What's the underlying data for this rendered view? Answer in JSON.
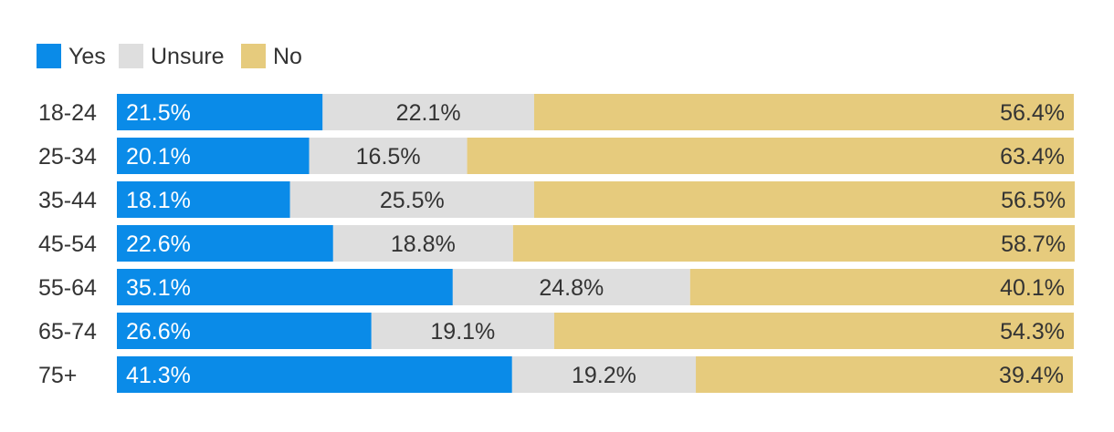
{
  "chart_data": {
    "type": "bar",
    "orientation": "horizontal",
    "stacked": true,
    "normalized": true,
    "title": "",
    "categories": [
      "18-24",
      "25-34",
      "35-44",
      "45-54",
      "55-64",
      "65-74",
      "75+"
    ],
    "series": [
      {
        "name": "Yes",
        "color": "#0a8be8",
        "label_color": "#ffffff",
        "label_align": "start",
        "values": [
          21.5,
          20.1,
          18.1,
          22.6,
          35.1,
          26.6,
          41.3
        ],
        "labels": [
          "21.5%",
          "20.1%",
          "18.1%",
          "22.6%",
          "35.1%",
          "26.6%",
          "41.3%"
        ]
      },
      {
        "name": "Unsure",
        "color": "#dedede",
        "label_color": "#333333",
        "label_align": "middle",
        "values": [
          22.1,
          16.5,
          25.5,
          18.8,
          24.8,
          19.1,
          19.2
        ],
        "labels": [
          "22.1%",
          "16.5%",
          "25.5%",
          "18.8%",
          "24.8%",
          "19.1%",
          "19.2%"
        ]
      },
      {
        "name": "No",
        "color": "#e6cb7d",
        "label_color": "#333333",
        "label_align": "end",
        "values": [
          56.4,
          63.4,
          56.5,
          58.7,
          40.1,
          54.3,
          39.4
        ],
        "labels": [
          "56.4%",
          "63.4%",
          "56.5%",
          "58.7%",
          "40.1%",
          "54.3%",
          "39.4%"
        ]
      }
    ],
    "legend": {
      "position": "top-left",
      "entries": [
        "Yes",
        "Unsure",
        "No"
      ]
    },
    "xlim": [
      0,
      100
    ],
    "grid": false,
    "xlabel": "",
    "ylabel": ""
  }
}
